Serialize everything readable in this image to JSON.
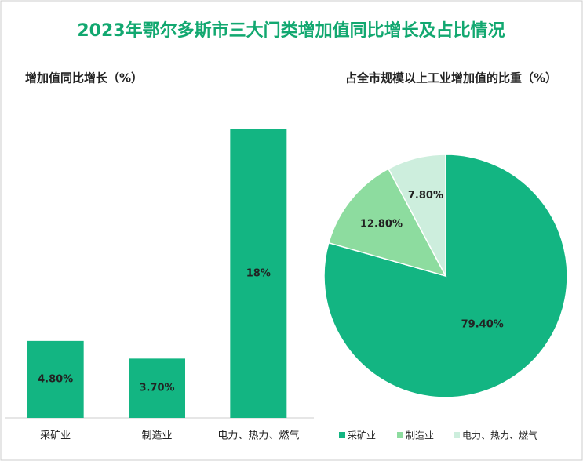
{
  "title": "2023年鄂尔多斯市三大门类增加值同比增长及占比情况",
  "chart_data": [
    {
      "type": "bar",
      "title": "增加值同比增长（%）",
      "categories": [
        "采矿业",
        "制造业",
        "电力、热力、燃气"
      ],
      "values": [
        4.8,
        3.7,
        18
      ],
      "value_labels": [
        "4.80%",
        "3.70%",
        "18%"
      ],
      "color": "#13b582"
    },
    {
      "type": "pie",
      "title": "占全市规模以上工业增加值的比重（%）",
      "categories": [
        "采矿业",
        "制造业",
        "电力、热力、燃气"
      ],
      "values": [
        79.4,
        12.8,
        7.8
      ],
      "value_labels": [
        "79.40%",
        "12.80%",
        "7.80%"
      ],
      "colors": [
        "#13b582",
        "#8ddc9f",
        "#cdeedd"
      ]
    }
  ]
}
